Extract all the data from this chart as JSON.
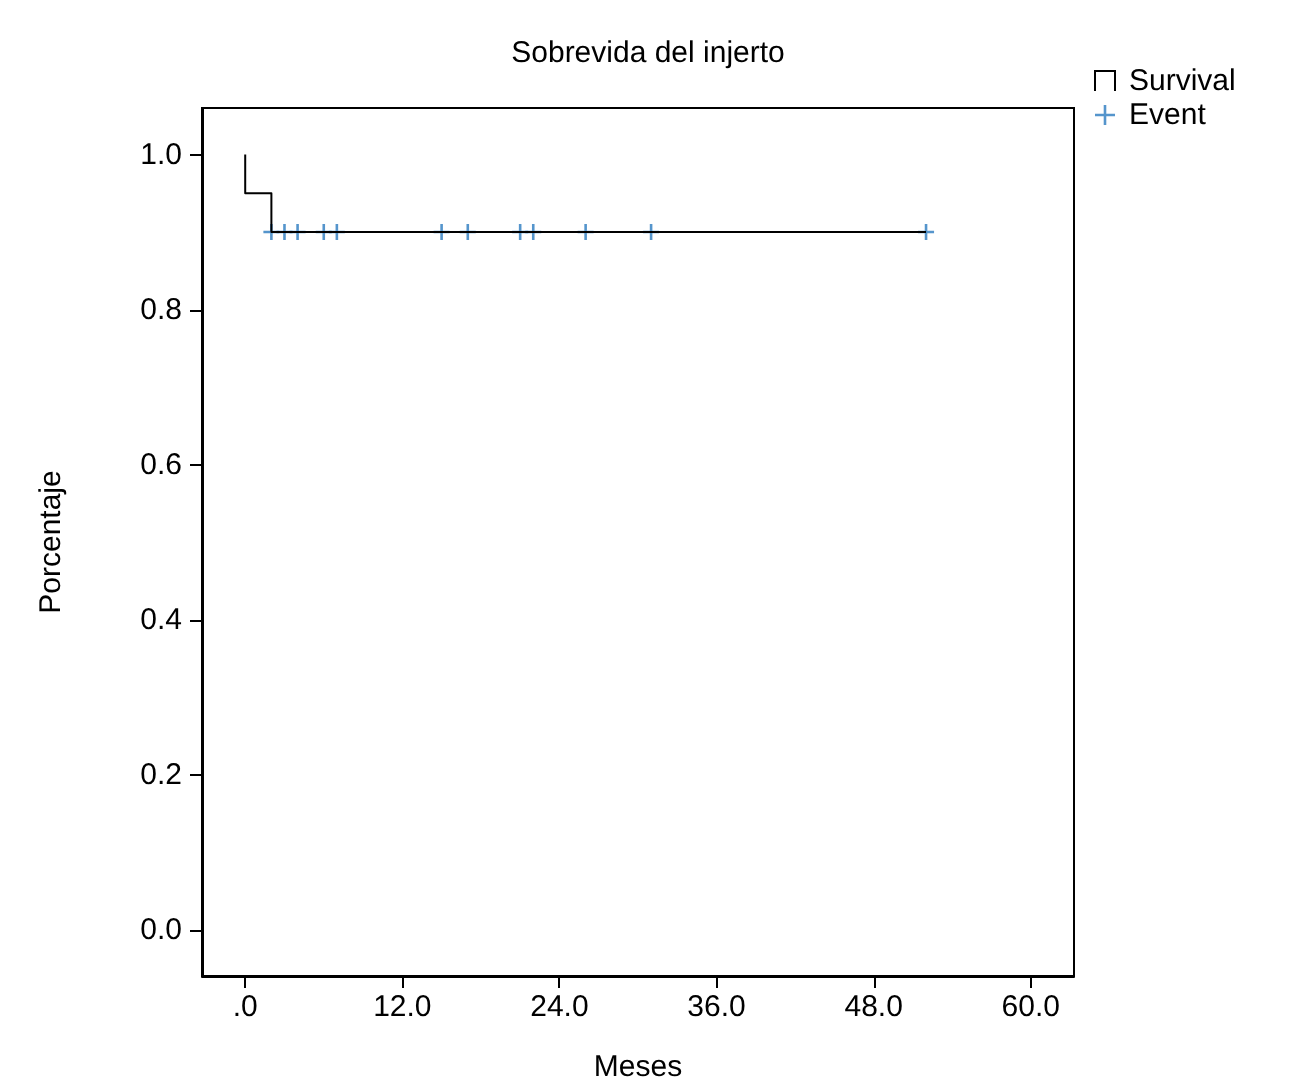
{
  "chart_data": {
    "type": "step",
    "title": "Sobrevida del injerto",
    "xlabel": "Meses",
    "ylabel": "Porcentaje",
    "xlim": [
      -3.3,
      63.3
    ],
    "ylim": [
      -0.06,
      1.06
    ],
    "xticks": [
      {
        "value": 0,
        "label": ".0"
      },
      {
        "value": 12,
        "label": "12.0"
      },
      {
        "value": 24,
        "label": "24.0"
      },
      {
        "value": 36,
        "label": "36.0"
      },
      {
        "value": 48,
        "label": "48.0"
      },
      {
        "value": 60,
        "label": "60.0"
      }
    ],
    "yticks": [
      {
        "value": 0,
        "label": "0.0"
      },
      {
        "value": 0.2,
        "label": "0.2"
      },
      {
        "value": 0.4,
        "label": "0.4"
      },
      {
        "value": 0.6,
        "label": "0.6"
      },
      {
        "value": 0.8,
        "label": "0.8"
      },
      {
        "value": 1,
        "label": "1.0"
      }
    ],
    "grid": false,
    "legend": "top right",
    "series": [
      {
        "name": "Survival",
        "color": "#000000",
        "x": [
          0,
          0,
          2,
          52
        ],
        "values": [
          1.0,
          0.95,
          0.9,
          0.9
        ],
        "marker": "none"
      },
      {
        "name": "Event",
        "type": "scatter",
        "color": "#2b7bbf",
        "marker": "cross",
        "x": [
          2,
          3,
          4,
          6,
          7,
          15,
          17,
          21,
          22,
          26,
          31,
          52
        ],
        "values": [
          0.9,
          0.9,
          0.9,
          0.9,
          0.9,
          0.9,
          0.9,
          0.9,
          0.9,
          0.9,
          0.9,
          0.9
        ]
      }
    ]
  }
}
